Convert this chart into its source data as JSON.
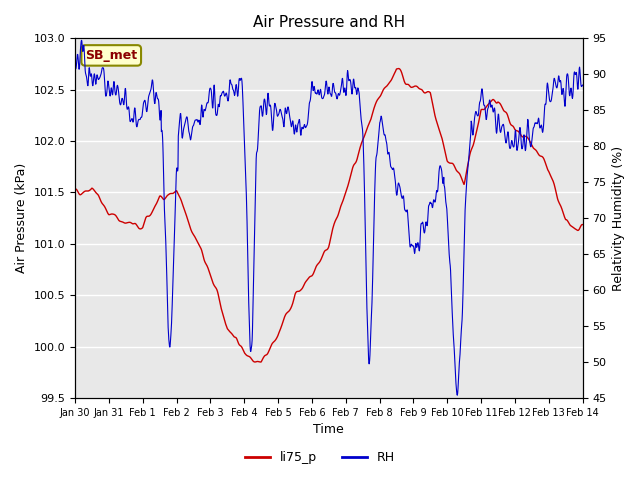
{
  "title": "Air Pressure and RH",
  "xlabel": "Time",
  "ylabel_left": "Air Pressure (kPa)",
  "ylabel_right": "Relativity Humidity (%)",
  "legend_label": "SB_met",
  "series_labels": [
    "li75_p",
    "RH"
  ],
  "series_colors": [
    "#cc0000",
    "#0000cc"
  ],
  "ylim_left": [
    99.5,
    103.0
  ],
  "ylim_right": [
    45,
    95
  ],
  "yticks_left": [
    99.5,
    100.0,
    100.5,
    101.0,
    101.5,
    102.0,
    102.5,
    103.0
  ],
  "yticks_right": [
    45,
    50,
    55,
    60,
    65,
    70,
    75,
    80,
    85,
    90,
    95
  ],
  "xtick_labels": [
    "Jan 30",
    "Jan 31",
    "Feb 1",
    "Feb 2",
    "Feb 3",
    "Feb 4",
    "Feb 5",
    "Feb 6",
    "Feb 7",
    "Feb 8",
    "Feb 9",
    "Feb 10",
    "Feb 11",
    "Feb 12",
    "Feb 13",
    "Feb 14"
  ],
  "background_color": "#ffffff",
  "plot_bg_color": "#e8e8e8",
  "grid_color": "#ffffff",
  "annotation_box_color": "#ffffcc",
  "annotation_text_color": "#8b0000",
  "annotation_text": "SB_met"
}
